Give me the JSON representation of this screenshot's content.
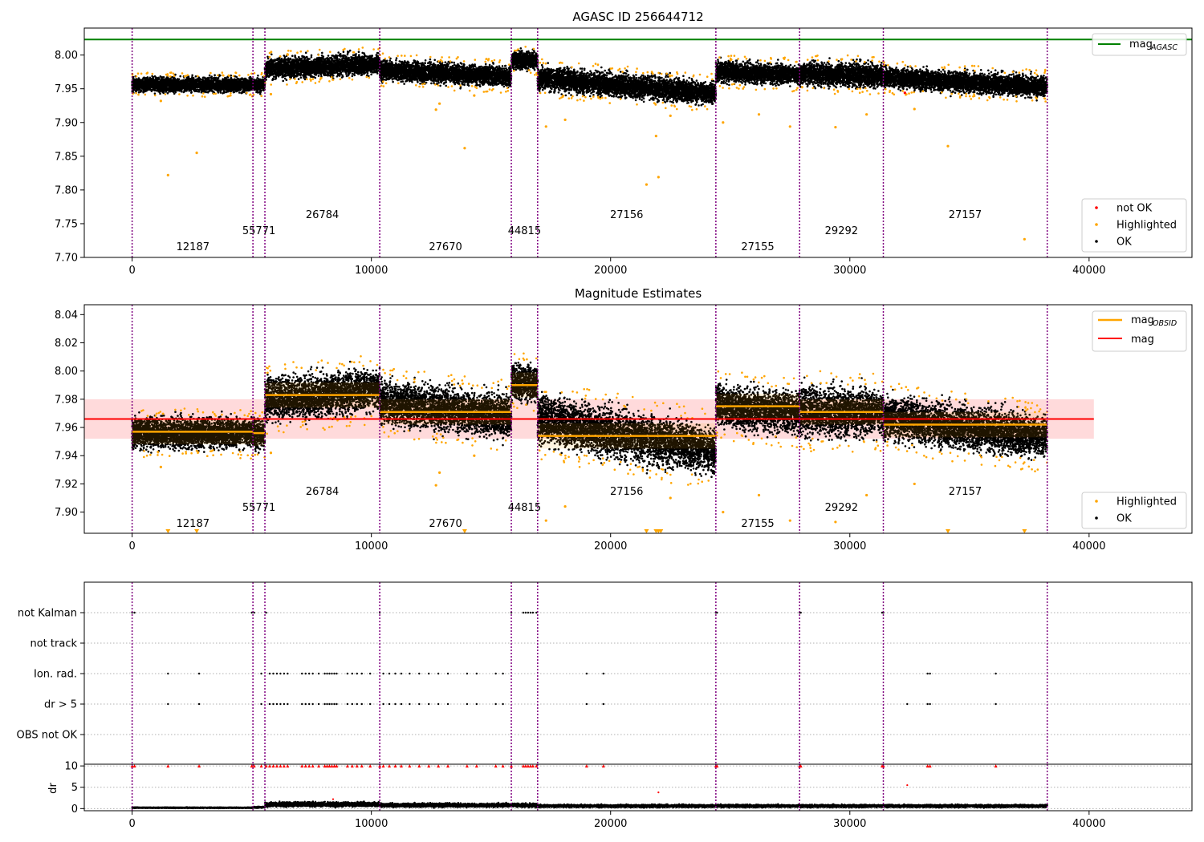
{
  "chart_data": [
    {
      "type": "scatter",
      "title": "AGASC ID 256644712",
      "xlim": [
        -2000,
        44300
      ],
      "ylim": [
        7.7,
        8.04
      ],
      "x_ticks": [
        0,
        10000,
        20000,
        30000,
        40000
      ],
      "x_tick_labels": [
        "0",
        "10000",
        "20000",
        "30000",
        "40000"
      ],
      "y_ticks": [
        7.7,
        7.75,
        7.8,
        7.85,
        7.9,
        7.95,
        8.0
      ],
      "y_tick_labels": [
        "7.70",
        "7.75",
        "7.80",
        "7.85",
        "7.90",
        "7.95",
        "8.00"
      ],
      "mag_agasc": 8.023,
      "legend_upper": {
        "placement": "top-right",
        "entries": [
          {
            "label": "mag",
            "subscript": "AGASC",
            "color": "#008000"
          }
        ]
      },
      "legend_lower": {
        "placement": "bottom-right",
        "entries": [
          {
            "label": "not OK",
            "color": "#ff0000"
          },
          {
            "label": "Highlighted",
            "color": "#ffa500"
          },
          {
            "label": "OK",
            "color": "#000000"
          }
        ]
      },
      "segment_trends": [
        {
          "x": [
            0,
            5050
          ],
          "y": [
            7.956,
            7.956
          ],
          "spread": 0.005
        },
        {
          "x": [
            5050,
            5550
          ],
          "y": [
            7.956,
            7.956
          ],
          "spread": 0.005
        },
        {
          "x": [
            5550,
            10350
          ],
          "y": [
            7.98,
            7.987
          ],
          "spread": 0.007
        },
        {
          "x": [
            10350,
            15850
          ],
          "y": [
            7.978,
            7.968
          ],
          "spread": 0.007
        },
        {
          "x": [
            15850,
            16950
          ],
          "y": [
            7.992,
            7.992
          ],
          "spread": 0.006
        },
        {
          "x": [
            16950,
            24400
          ],
          "y": [
            7.966,
            7.943
          ],
          "spread": 0.008
        },
        {
          "x": [
            24400,
            27900
          ],
          "y": [
            7.976,
            7.97
          ],
          "spread": 0.007
        },
        {
          "x": [
            27900,
            31400
          ],
          "y": [
            7.972,
            7.97
          ],
          "spread": 0.008
        },
        {
          "x": [
            31400,
            38250
          ],
          "y": [
            7.967,
            7.953
          ],
          "spread": 0.007
        }
      ],
      "highlighted_outliers": [
        [
          1500,
          7.822
        ],
        [
          2700,
          7.855
        ],
        [
          13900,
          7.862
        ],
        [
          12700,
          7.919
        ],
        [
          12850,
          7.928
        ],
        [
          17300,
          7.894
        ],
        [
          18100,
          7.904
        ],
        [
          21500,
          7.808
        ],
        [
          22000,
          7.819
        ],
        [
          21900,
          7.88
        ],
        [
          22500,
          7.91
        ],
        [
          24700,
          7.9
        ],
        [
          26200,
          7.912
        ],
        [
          27500,
          7.894
        ],
        [
          29400,
          7.893
        ],
        [
          30700,
          7.912
        ],
        [
          32700,
          7.92
        ],
        [
          34100,
          7.865
        ],
        [
          37300,
          7.727
        ],
        [
          1200,
          7.932
        ],
        [
          5800,
          7.942
        ],
        [
          14300,
          7.94
        ]
      ],
      "not_ok_points": [
        [
          32300,
          7.944
        ]
      ]
    },
    {
      "type": "scatter",
      "title": "Magnitude Estimates",
      "xlim": [
        -2000,
        44300
      ],
      "ylim": [
        7.885,
        8.047
      ],
      "x_ticks": [
        0,
        10000,
        20000,
        30000,
        40000
      ],
      "x_tick_labels": [
        "0",
        "10000",
        "20000",
        "30000",
        "40000"
      ],
      "y_ticks": [
        7.9,
        7.92,
        7.94,
        7.96,
        7.98,
        8.0,
        8.02,
        8.04
      ],
      "y_tick_labels": [
        "7.90",
        "7.92",
        "7.94",
        "7.96",
        "7.98",
        "8.00",
        "8.02",
        "8.04"
      ],
      "mag": 7.966,
      "mag_band": [
        7.952,
        7.98
      ],
      "mag_band_xlim": [
        -2000,
        40200
      ],
      "mag_obsid": [
        {
          "x": [
            0,
            5050
          ],
          "y": 7.957
        },
        {
          "x": [
            5050,
            5550
          ],
          "y": 7.956
        },
        {
          "x": [
            5550,
            10350
          ],
          "y": 7.983
        },
        {
          "x": [
            10350,
            15850
          ],
          "y": 7.971
        },
        {
          "x": [
            15850,
            16950
          ],
          "y": 7.99
        },
        {
          "x": [
            16950,
            24400
          ],
          "y": 7.954
        },
        {
          "x": [
            24400,
            27900
          ],
          "y": 7.975
        },
        {
          "x": [
            27900,
            31400
          ],
          "y": 7.971
        },
        {
          "x": [
            31400,
            38250
          ],
          "y": 7.962
        }
      ],
      "legend_upper": {
        "placement": "top-right",
        "entries": [
          {
            "label": "mag",
            "subscript": "OBSID",
            "color": "#ffa500"
          },
          {
            "label": "mag",
            "subscript": "",
            "color": "#ff0000"
          }
        ]
      },
      "legend_lower": {
        "placement": "bottom-right",
        "entries": [
          {
            "label": "Highlighted",
            "color": "#ffa500"
          },
          {
            "label": "OK",
            "color": "#000000"
          }
        ]
      },
      "clipped_low_x": [
        1500,
        2700,
        13900,
        21500,
        21900,
        22000,
        22100,
        34100,
        37300
      ]
    },
    {
      "type": "scatter",
      "title": "",
      "xlim": [
        -2000,
        44300
      ],
      "categories": [
        "not Kalman",
        "not track",
        "Ion. rad.",
        "dr > 5",
        "OBS not OK"
      ],
      "flag_points": {
        "not Kalman": [
          0,
          100,
          5000,
          5100,
          5600,
          10350,
          15850,
          16350,
          16450,
          16550,
          16650,
          16750,
          16900,
          24400,
          24450,
          27900,
          27950,
          31350,
          31400
        ],
        "not track": [],
        "Ion. rad.": [
          1500,
          2800,
          5400,
          5750,
          5900,
          6050,
          6200,
          6350,
          6500,
          7100,
          7250,
          7400,
          7550,
          7800,
          8050,
          8150,
          8250,
          8350,
          8450,
          8550,
          9000,
          9200,
          9400,
          9600,
          9950,
          10500,
          10750,
          11000,
          11250,
          11600,
          12000,
          12400,
          12800,
          13200,
          14000,
          14400,
          15200,
          15500,
          19000,
          19700,
          33250,
          33350,
          36100
        ],
        "dr > 5": [
          1500,
          2800,
          5400,
          5750,
          5900,
          6050,
          6200,
          6350,
          6500,
          7100,
          7250,
          7400,
          7550,
          7800,
          8050,
          8150,
          8250,
          8350,
          8450,
          8550,
          9000,
          9200,
          9400,
          9600,
          9950,
          10500,
          10750,
          11000,
          11250,
          11600,
          12000,
          12400,
          12800,
          13200,
          14000,
          14400,
          15200,
          15500,
          19000,
          19700,
          32400,
          33250,
          33350,
          36100
        ],
        "OBS not OK": []
      }
    },
    {
      "type": "scatter",
      "ylabel": "dr",
      "xlim": [
        -2000,
        44300
      ],
      "ylim": [
        -0.5,
        10.4
      ],
      "x_ticks": [
        0,
        10000,
        20000,
        30000,
        40000
      ],
      "x_tick_labels": [
        "0",
        "10000",
        "20000",
        "30000",
        "40000"
      ],
      "y_ticks": [
        0,
        5,
        10
      ],
      "y_tick_labels": [
        "0",
        "5",
        "10"
      ],
      "dr_levels": [
        {
          "x": [
            0,
            5050
          ],
          "y": 0.2
        },
        {
          "x": [
            5050,
            5550
          ],
          "y": 0.3
        },
        {
          "x": [
            5550,
            10350
          ],
          "y": 1.0
        },
        {
          "x": [
            10350,
            15850
          ],
          "y": 0.8
        },
        {
          "x": [
            15850,
            16950
          ],
          "y": 0.8
        },
        {
          "x": [
            16950,
            24400
          ],
          "y": 0.6
        },
        {
          "x": [
            24400,
            27900
          ],
          "y": 0.6
        },
        {
          "x": [
            27900,
            31400
          ],
          "y": 0.6
        },
        {
          "x": [
            31400,
            38250
          ],
          "y": 0.6
        }
      ],
      "dr_outliers": [
        [
          22000,
          3.8
        ],
        [
          32400,
          5.5
        ],
        [
          8400,
          2.2
        ]
      ],
      "capped_points_x": [
        0,
        100,
        1500,
        2800,
        5000,
        5100,
        5400,
        5600,
        5750,
        5900,
        6050,
        6200,
        6350,
        6500,
        7100,
        7250,
        7400,
        7550,
        7800,
        8050,
        8150,
        8250,
        8350,
        8450,
        8550,
        9000,
        9200,
        9400,
        9600,
        9950,
        10350,
        10500,
        10750,
        11000,
        11250,
        11600,
        12000,
        12400,
        12800,
        13200,
        14000,
        14400,
        15200,
        15500,
        15850,
        16350,
        16450,
        16550,
        16650,
        16750,
        16900,
        19000,
        19700,
        24400,
        24450,
        27900,
        27950,
        31350,
        31400,
        33250,
        33350,
        36100
      ]
    }
  ],
  "obsid_boundaries": [
    0,
    5050,
    5550,
    10350,
    15850,
    16950,
    24400,
    27900,
    31400,
    38250
  ],
  "obsid_labels": [
    {
      "text": "12187",
      "x": 2540,
      "level": 0
    },
    {
      "text": "55771",
      "x": 5300,
      "level": 1
    },
    {
      "text": "26784",
      "x": 7950,
      "level": 2
    },
    {
      "text": "27670",
      "x": 13100,
      "level": 0
    },
    {
      "text": "44815",
      "x": 16400,
      "level": 1
    },
    {
      "text": "27156",
      "x": 20670,
      "level": 2
    },
    {
      "text": "27155",
      "x": 26150,
      "level": 0
    },
    {
      "text": "29292",
      "x": 29650,
      "level": 1
    },
    {
      "text": "27157",
      "x": 34820,
      "level": 2
    }
  ],
  "colors": {
    "ok": "#000000",
    "highlighted": "#ffa500",
    "not_ok": "#ff0000",
    "agasc": "#008000",
    "mag": "#ff0000",
    "band": "#ffdadb",
    "boundary": "#800080",
    "grid": "#b0b0b0"
  }
}
